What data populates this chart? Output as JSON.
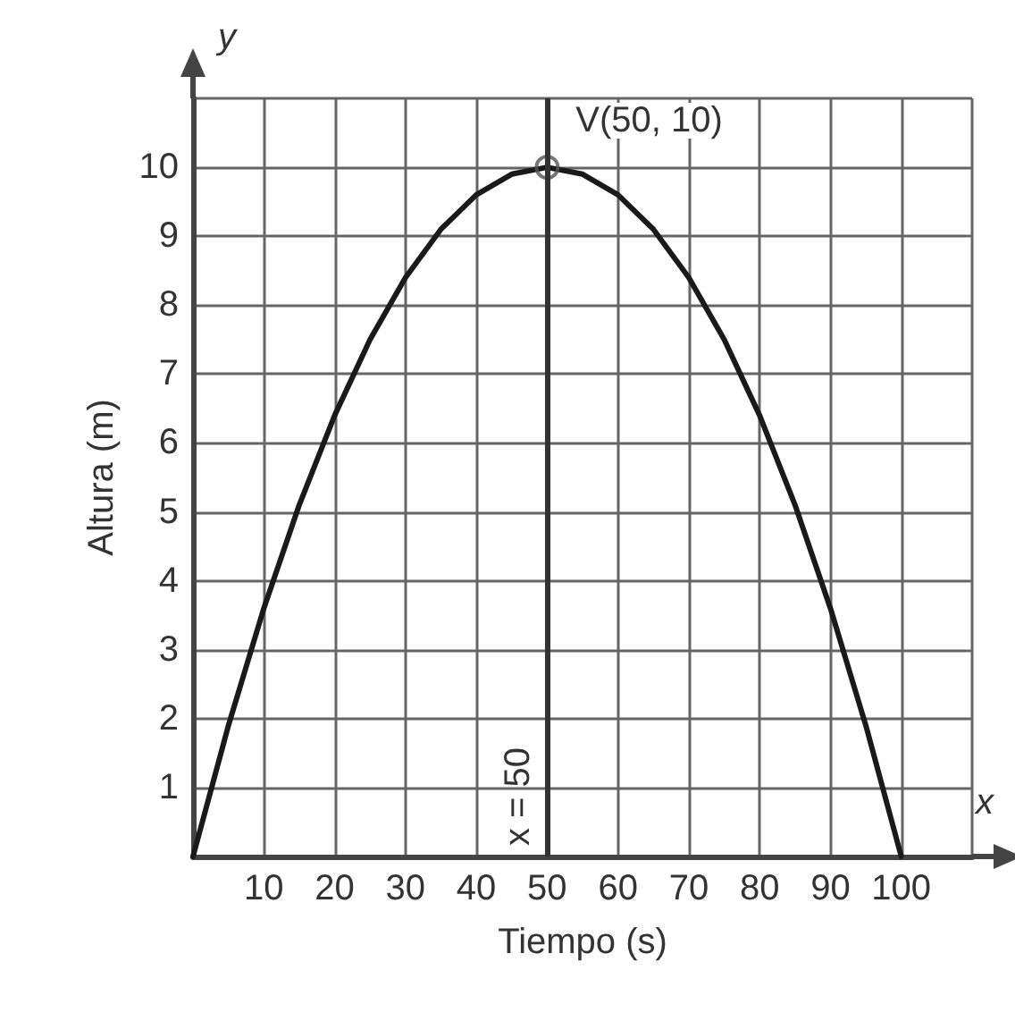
{
  "chart_data": {
    "type": "line",
    "xlabel": "Tiempo (s)",
    "ylabel": "Altura (m)",
    "x": [
      0,
      5,
      10,
      15,
      20,
      25,
      30,
      35,
      40,
      45,
      50,
      55,
      60,
      65,
      70,
      75,
      80,
      85,
      90,
      95,
      100
    ],
    "series": [
      {
        "color": "#1a1a1a",
        "marker": "none",
        "values": [
          0,
          1.9,
          3.6,
          5.1,
          6.4,
          7.5,
          8.4,
          9.1,
          9.6,
          9.9,
          10,
          9.9,
          9.6,
          9.1,
          8.4,
          7.5,
          6.4,
          5.1,
          3.6,
          1.9,
          0
        ]
      },
      {
        "type": "scatter",
        "color": "#555555",
        "marker": "circle",
        "x": [
          50
        ],
        "values": [
          10
        ]
      }
    ],
    "xlim": [
      0,
      110
    ],
    "ylim": [
      0,
      11
    ],
    "xticks": [
      {
        "value": 0,
        "label": null
      },
      10,
      20,
      30,
      40,
      50,
      60,
      70,
      80,
      90,
      100,
      {
        "value": 110,
        "label": null
      }
    ],
    "yticks": [
      {
        "value": 0,
        "label": null
      },
      1,
      2,
      3,
      4,
      5,
      6,
      7,
      8,
      9,
      10,
      {
        "value": 11,
        "label": null
      }
    ],
    "grid": true,
    "ref_lines": [
      {
        "axis": "x",
        "value": 50,
        "label": "x = 50",
        "color": "#333333"
      }
    ],
    "annotations": [
      "y",
      "x",
      {
        "text": "V(50, 10)",
        "x": 50,
        "y": 10
      }
    ]
  }
}
